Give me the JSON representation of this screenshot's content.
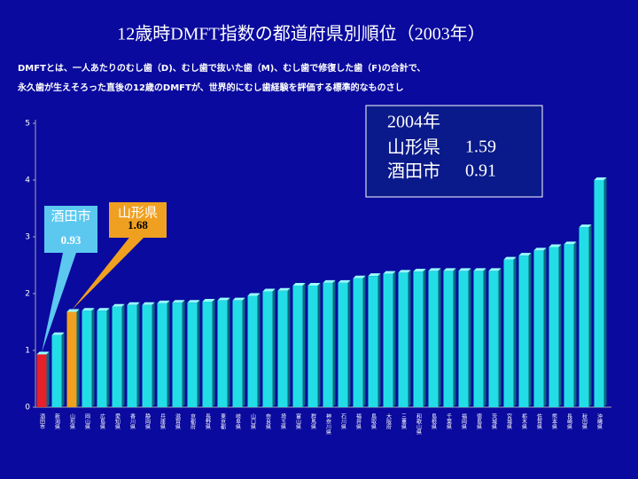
{
  "chart_data": {
    "type": "bar",
    "title": "12歳時DMFT指数の都道府県別順位（2003年）",
    "subtitle": [
      "DMFTとは、一人あたりのむし歯（D)、むし歯で抜いた歯（M)、むし歯で修復した歯（F)の合計で、",
      "永久歯が生えそろった直後の12歳のDMFTが、世界的にむし歯経験を評価する標準的なものさし"
    ],
    "categories": [
      "酒田市",
      "新潟県",
      "山形県",
      "岡山県",
      "広島県",
      "愛知県",
      "香川県",
      "静岡県",
      "兵庫県",
      "滋賀県",
      "京都府",
      "長野県",
      "東京都",
      "岐阜県",
      "山口県",
      "奈良県",
      "埼玉県",
      "富山県",
      "群馬県",
      "神奈川県",
      "石川県",
      "福井県",
      "鳥取県",
      "大阪府",
      "三重県",
      "和歌山県",
      "島根県",
      "千葉県",
      "福岡県",
      "徳島県",
      "茨城県",
      "宮城県",
      "栃木県",
      "佐賀県",
      "熊本県",
      "長崎県",
      "秋田県",
      "沖縄県"
    ],
    "values": [
      0.93,
      1.27,
      1.68,
      1.7,
      1.7,
      1.77,
      1.8,
      1.8,
      1.83,
      1.84,
      1.84,
      1.86,
      1.88,
      1.88,
      1.96,
      2.04,
      2.05,
      2.14,
      2.14,
      2.19,
      2.19,
      2.27,
      2.31,
      2.35,
      2.37,
      2.39,
      2.4,
      2.4,
      2.4,
      2.4,
      2.4,
      2.6,
      2.67,
      2.76,
      2.82,
      2.87,
      3.17,
      4.0
    ],
    "colors": [
      "#e8202a",
      "#22dde6",
      "#f0a020",
      "#22dde6",
      "#22dde6",
      "#22dde6",
      "#22dde6",
      "#22dde6",
      "#22dde6",
      "#22dde6",
      "#22dde6",
      "#22dde6",
      "#22dde6",
      "#22dde6",
      "#22dde6",
      "#22dde6",
      "#22dde6",
      "#22dde6",
      "#22dde6",
      "#22dde6",
      "#22dde6",
      "#22dde6",
      "#22dde6",
      "#22dde6",
      "#22dde6",
      "#22dde6",
      "#22dde6",
      "#22dde6",
      "#22dde6",
      "#22dde6",
      "#22dde6",
      "#22dde6",
      "#22dde6",
      "#22dde6",
      "#22dde6",
      "#22dde6",
      "#22dde6",
      "#22dde6"
    ],
    "ylim": [
      0,
      5
    ],
    "yticks": [
      0,
      1,
      2,
      3,
      4,
      5
    ],
    "grid": false,
    "callouts": [
      {
        "label": "酒田市",
        "value": 0.93,
        "color": "#5cc8f0",
        "index": 0
      },
      {
        "label": "山形県",
        "value": 1.68,
        "color": "#f0a020",
        "index": 2
      }
    ],
    "info_box": {
      "title": "2004年",
      "entries": [
        {
          "name": "山形県",
          "value": 1.59
        },
        {
          "name": "酒田市",
          "value": 0.91
        }
      ]
    }
  }
}
